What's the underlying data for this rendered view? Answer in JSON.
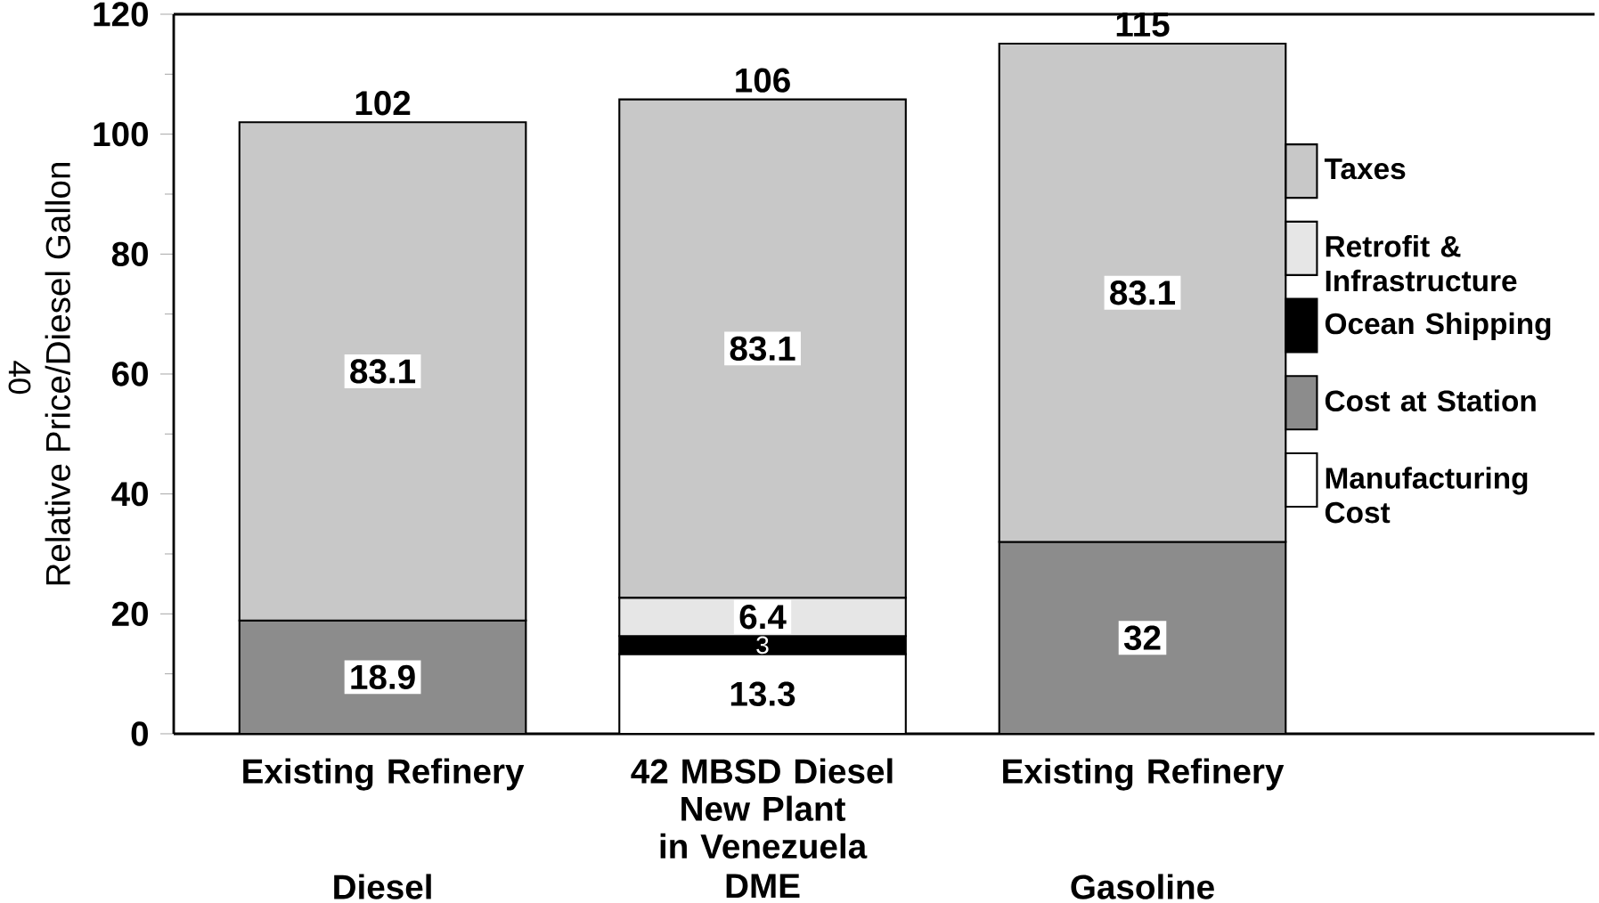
{
  "chart_data": {
    "type": "bar",
    "stacked": true,
    "categories": [
      "Existing Refinery",
      "42 MBSD Diesel New Plant in Venezuela",
      "Existing Refinery"
    ],
    "ylabel": "Relative Price/Diesel Gallon",
    "ylim": [
      0,
      120
    ],
    "yticks": [
      0,
      20,
      40,
      60,
      80,
      100,
      120
    ],
    "series": [
      {
        "name": "Manufacturing Cost",
        "color": "#ffffff",
        "values": [
          null,
          13.3,
          null
        ],
        "value_labels": [
          null,
          "13.3",
          null
        ]
      },
      {
        "name": "Cost at Station",
        "color": "#8c8c8c",
        "values": [
          18.9,
          null,
          32
        ],
        "value_labels": [
          "18.9",
          null,
          "32"
        ]
      },
      {
        "name": "Ocean Shipping",
        "color": "#000000",
        "values": [
          null,
          3,
          null
        ],
        "value_labels": [
          null,
          "3",
          null
        ]
      },
      {
        "name": "Retrofit & Infrastructure",
        "color": "#e6e6e6",
        "values": [
          null,
          6.4,
          null
        ],
        "value_labels": [
          null,
          "6.4",
          null
        ]
      },
      {
        "name": "Taxes",
        "color": "#c8c8c8",
        "values": [
          83.1,
          83.1,
          83.1
        ],
        "value_labels": [
          "83.1",
          "83.1",
          "83.1"
        ]
      }
    ],
    "totals": [
      "102",
      "106",
      "115"
    ],
    "legend": "right",
    "grid": false,
    "annotations": [
      "Diesel",
      "DME",
      "Gasoline",
      "40"
    ]
  }
}
